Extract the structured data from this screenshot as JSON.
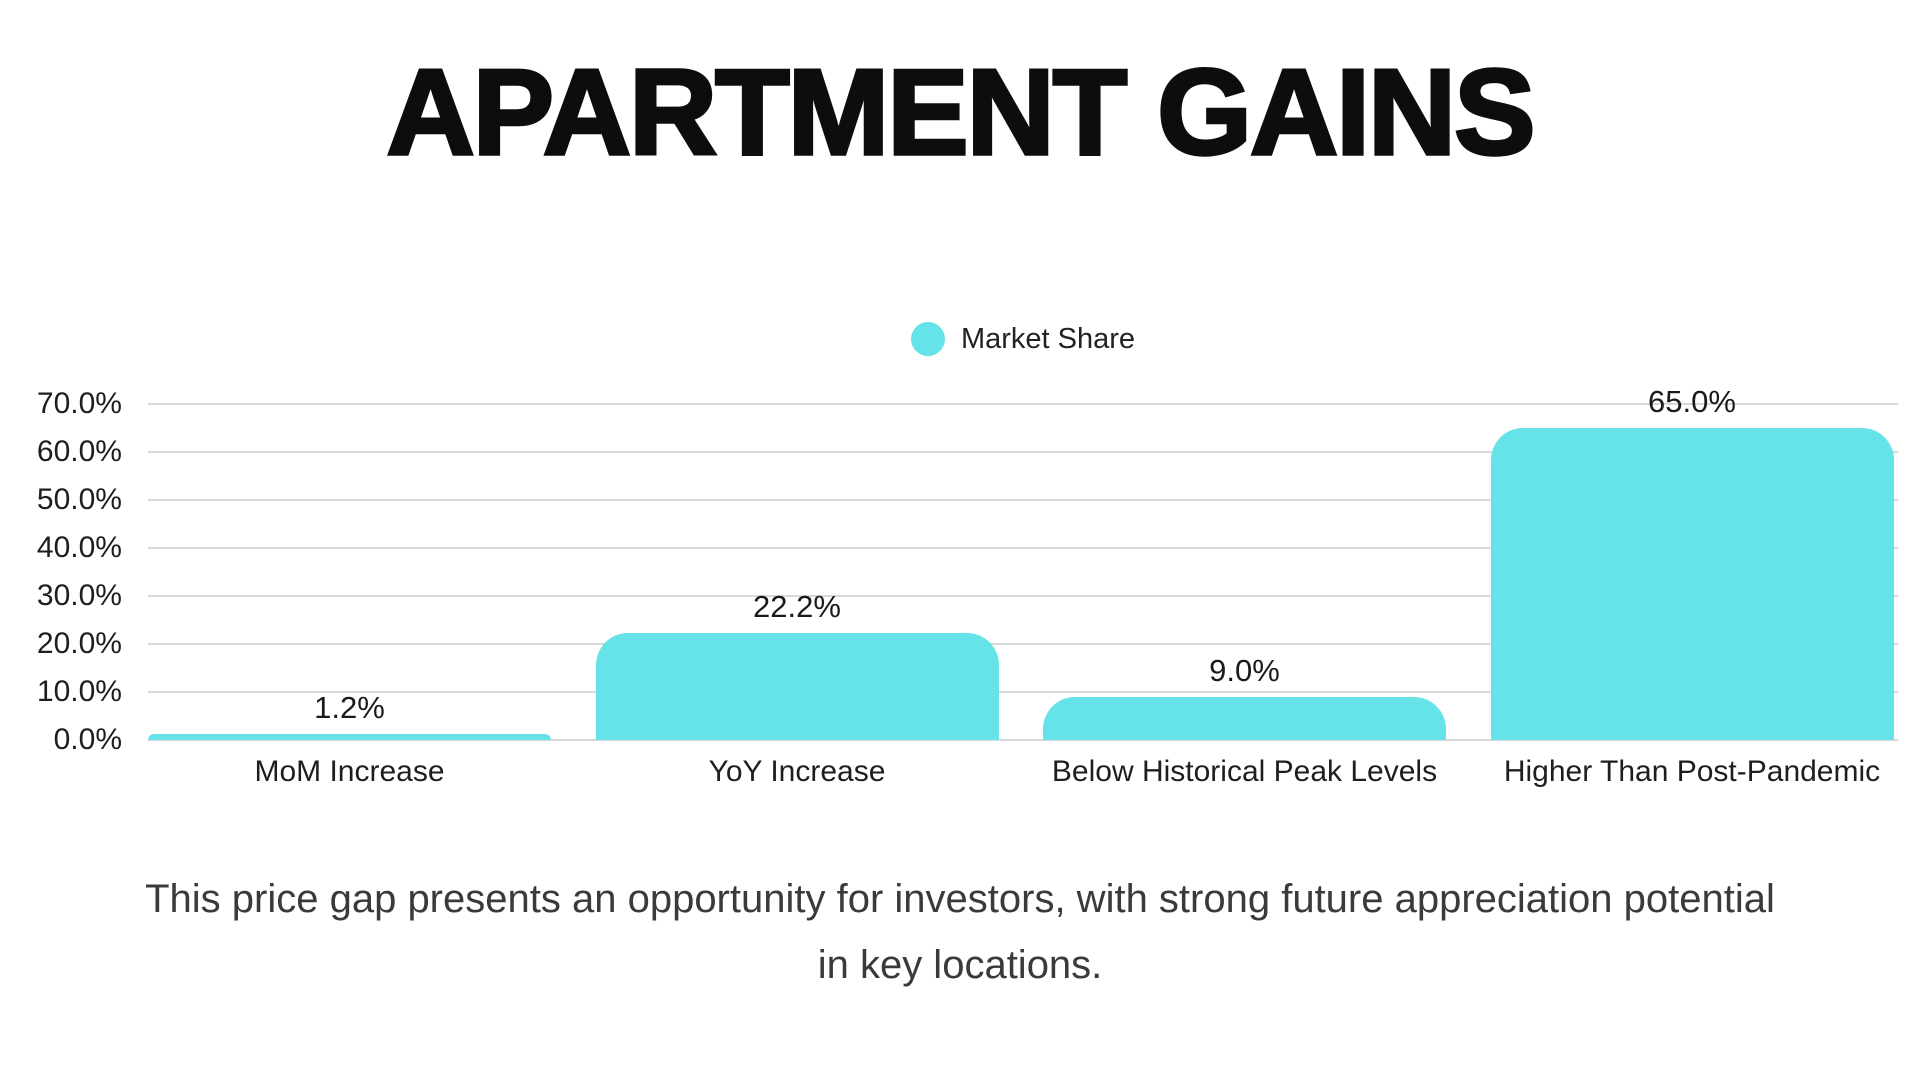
{
  "title": "APARTMENT GAINS",
  "legend": {
    "label": "Market Share"
  },
  "chart_data": {
    "type": "bar",
    "title": "APARTMENT GAINS",
    "categories": [
      "MoM Increase",
      "YoY Increase",
      "Below Historical Peak Levels",
      "Higher Than Post-Pandemic"
    ],
    "series": [
      {
        "name": "Market Share",
        "values": [
          1.2,
          22.2,
          9.0,
          65.0
        ]
      }
    ],
    "value_labels": [
      "1.2%",
      "22.2%",
      "9.0%",
      "65.0%"
    ],
    "ytick_labels": [
      "70.0%",
      "60.0%",
      "50.0%",
      "40.0%",
      "30.0%",
      "20.0%",
      "10.0%",
      "0.0%"
    ],
    "ylim": [
      0,
      70
    ],
    "ytick_step": 10,
    "grid": true,
    "legend_position": "top-center",
    "xlabel": "",
    "ylabel": ""
  },
  "caption": {
    "line1": "This price gap presents an opportunity for investors, with strong future appreciation potential",
    "line2": "in key locations."
  },
  "colors": {
    "bar": "#66E3E8",
    "legend_dot": "#66E3E8",
    "gridline": "#D9D9D9",
    "background": "#FFFFFF"
  }
}
